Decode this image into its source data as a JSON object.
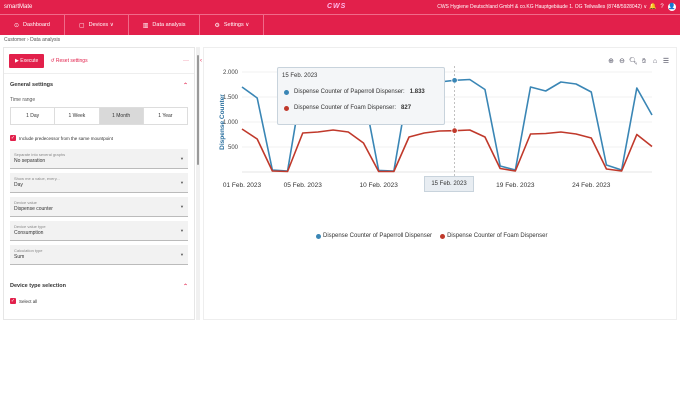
{
  "topbar": {
    "app_title": "smartMate",
    "logo": "CWS",
    "org": "CWS Hygiene Deutschland GmbH & co.KG Hauptgebäude 1. OG Teilwalles (8748/5928042) ∨",
    "bell": "🔔",
    "help": "?",
    "avatar": "👤"
  },
  "nav": {
    "items": [
      {
        "icon": "⊙",
        "label": "Dashboard"
      },
      {
        "icon": "▢",
        "label": "Devices ∨"
      },
      {
        "icon": "▥",
        "label": "Data analysis"
      },
      {
        "icon": "⚙",
        "label": "Settings ∨"
      }
    ]
  },
  "breadcrumb": "Customer  ›  Data analysis",
  "panel": {
    "execute": "▶ Execute",
    "reset": "↺ Reset settings",
    "more": "···",
    "general_settings": "General settings",
    "time_range_label": "Time range",
    "time_range_options": [
      "1 Day",
      "1 Week",
      "1 Month",
      "1 Year"
    ],
    "predecessor_label": "Include predecessor from the same mountpoint",
    "selects": [
      {
        "label": "Separate into several graphs",
        "value": "No separation"
      },
      {
        "label": "Show me a value, every...",
        "value": "Day"
      },
      {
        "label": "Device value",
        "value": "Dispense counter"
      },
      {
        "label": "Device value type",
        "value": "Consumption"
      },
      {
        "label": "Calculation type",
        "value": "Sum"
      }
    ],
    "device_type_selection": "Device type selection",
    "select_all": "Select all"
  },
  "chart_data": {
    "type": "line",
    "ylabel": "Dispense Counter",
    "y_ticks": [
      "500",
      "1.000",
      "1.500",
      "2.000"
    ],
    "ylim": [
      0,
      2000
    ],
    "x_ticks": [
      "01 Feb. 2023",
      "05 Feb. 2023",
      "10 Feb. 2023",
      "15 Feb. 2023",
      "19 Feb. 2023",
      "24 Feb. 2023"
    ],
    "series": [
      {
        "name": "Dispense Counter of Paperroll Dispenser",
        "color": "#3a86b5",
        "values": [
          1700,
          1480,
          40,
          20,
          1820,
          1830,
          1840,
          1850,
          1600,
          30,
          20,
          1780,
          1760,
          1800,
          1833,
          1850,
          1650,
          120,
          40,
          1700,
          1620,
          1800,
          1760,
          1600,
          140,
          40,
          1680,
          1140
        ]
      },
      {
        "name": "Dispense Counter of Foam Dispenser",
        "color": "#c0392b",
        "values": [
          860,
          660,
          20,
          10,
          780,
          800,
          840,
          800,
          580,
          10,
          10,
          700,
          780,
          820,
          827,
          840,
          700,
          70,
          20,
          760,
          770,
          800,
          760,
          680,
          60,
          20,
          750,
          510
        ]
      }
    ],
    "legend": "bottom"
  },
  "tooltip": {
    "date": "15 Feb. 2023",
    "rows": [
      {
        "label": "Dispense Counter of Paperroll Dispenser:",
        "value": "1.833",
        "color": "#3a86b5"
      },
      {
        "label": "Dispense Counter of Foam Dispenser:",
        "value": "827",
        "color": "#c0392b"
      }
    ]
  },
  "toolbar_icons": [
    "zoom-in-icon",
    "zoom-out-icon",
    "magnify-icon",
    "pan-icon",
    "home-icon",
    "menu-icon"
  ]
}
